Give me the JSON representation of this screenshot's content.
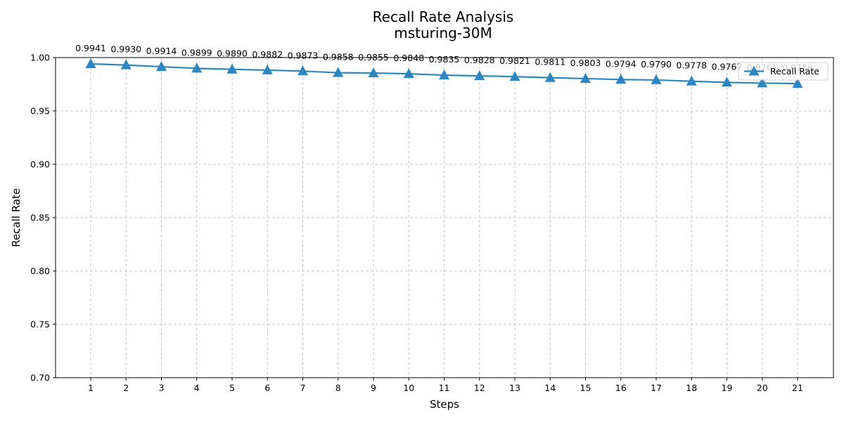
{
  "chart_data": {
    "type": "line",
    "title": "Recall Rate Analysis",
    "subtitle": "msturing-30M",
    "xlabel": "Steps",
    "ylabel": "Recall Rate",
    "x": [
      1,
      2,
      3,
      4,
      5,
      6,
      7,
      8,
      9,
      10,
      11,
      12,
      13,
      14,
      15,
      16,
      17,
      18,
      19,
      20,
      21
    ],
    "series": [
      {
        "name": "Recall Rate",
        "values": [
          0.9941,
          0.993,
          0.9914,
          0.9899,
          0.989,
          0.9882,
          0.9873,
          0.9858,
          0.9855,
          0.9848,
          0.9835,
          0.9828,
          0.9821,
          0.9811,
          0.9803,
          0.9794,
          0.979,
          0.9778,
          0.9767,
          0.9761,
          0.9756
        ],
        "labels": [
          "0.9941",
          "0.9930",
          "0.9914",
          "0.9899",
          "0.9890",
          "0.9882",
          "0.9873",
          "0.9858",
          "0.9855",
          "0.9848",
          "0.9835",
          "0.9828",
          "0.9821",
          "0.9811",
          "0.9803",
          "0.9794",
          "0.9790",
          "0.9778",
          "0.9767",
          "0.9761",
          "0.9756"
        ],
        "color": "#2e86c1",
        "marker": "triangle"
      }
    ],
    "ylim": [
      0.7,
      1.0
    ],
    "yticks": [
      0.7,
      0.75,
      0.8,
      0.85,
      0.9,
      0.95,
      1.0
    ],
    "ytick_labels": [
      "0.70",
      "0.75",
      "0.80",
      "0.85",
      "0.90",
      "0.95",
      "1.00"
    ],
    "grid": true,
    "legend": "top-right"
  }
}
